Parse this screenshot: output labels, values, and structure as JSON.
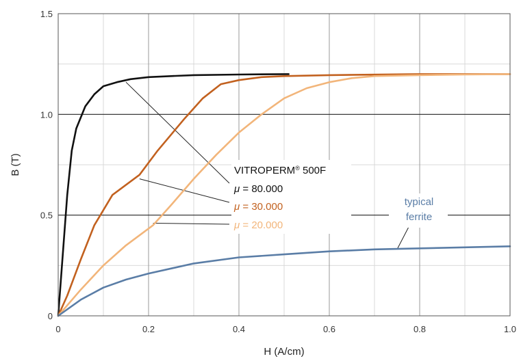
{
  "chart_data": {
    "type": "line",
    "title": "",
    "xlabel": "H (A/cm)",
    "ylabel": "B (T)",
    "xlim": [
      0,
      1.0
    ],
    "ylim": [
      0,
      1.5
    ],
    "x_ticks": [
      "0",
      "0.2",
      "0.4",
      "0.6",
      "0.8",
      "1.0"
    ],
    "y_ticks": [
      "0",
      "0.5",
      "1.0",
      "1.5"
    ],
    "grid": true,
    "series": [
      {
        "name": "μ = 80.000",
        "color": "#111111",
        "points": [
          [
            0,
            0
          ],
          [
            0.01,
            0.3
          ],
          [
            0.02,
            0.6
          ],
          [
            0.03,
            0.82
          ],
          [
            0.04,
            0.93
          ],
          [
            0.06,
            1.04
          ],
          [
            0.08,
            1.1
          ],
          [
            0.1,
            1.14
          ],
          [
            0.13,
            1.16
          ],
          [
            0.16,
            1.175
          ],
          [
            0.2,
            1.185
          ],
          [
            0.25,
            1.19
          ],
          [
            0.3,
            1.195
          ],
          [
            0.4,
            1.198
          ],
          [
            0.51,
            1.2
          ]
        ]
      },
      {
        "name": "μ = 30.000",
        "color": "#c2611f",
        "points": [
          [
            0,
            0
          ],
          [
            0.02,
            0.1
          ],
          [
            0.05,
            0.28
          ],
          [
            0.08,
            0.45
          ],
          [
            0.12,
            0.6
          ],
          [
            0.18,
            0.7
          ],
          [
            0.22,
            0.82
          ],
          [
            0.28,
            0.98
          ],
          [
            0.32,
            1.08
          ],
          [
            0.36,
            1.15
          ],
          [
            0.4,
            1.17
          ],
          [
            0.45,
            1.185
          ],
          [
            0.5,
            1.19
          ],
          [
            0.6,
            1.195
          ],
          [
            0.8,
            1.2
          ],
          [
            1.0,
            1.2
          ]
        ]
      },
      {
        "name": "μ = 20.000",
        "color": "#f2b57a",
        "points": [
          [
            0,
            0
          ],
          [
            0.05,
            0.13
          ],
          [
            0.1,
            0.25
          ],
          [
            0.15,
            0.35
          ],
          [
            0.21,
            0.45
          ],
          [
            0.25,
            0.55
          ],
          [
            0.3,
            0.68
          ],
          [
            0.35,
            0.8
          ],
          [
            0.4,
            0.91
          ],
          [
            0.45,
            1.0
          ],
          [
            0.5,
            1.08
          ],
          [
            0.55,
            1.13
          ],
          [
            0.6,
            1.16
          ],
          [
            0.65,
            1.18
          ],
          [
            0.7,
            1.19
          ],
          [
            0.8,
            1.195
          ],
          [
            0.9,
            1.198
          ],
          [
            1.0,
            1.2
          ]
        ]
      },
      {
        "name": "typical ferrite",
        "color": "#5a7da6",
        "points": [
          [
            0,
            0
          ],
          [
            0.05,
            0.08
          ],
          [
            0.1,
            0.14
          ],
          [
            0.15,
            0.18
          ],
          [
            0.2,
            0.21
          ],
          [
            0.3,
            0.26
          ],
          [
            0.4,
            0.29
          ],
          [
            0.5,
            0.305
          ],
          [
            0.6,
            0.32
          ],
          [
            0.7,
            0.33
          ],
          [
            0.8,
            0.335
          ],
          [
            0.9,
            0.34
          ],
          [
            1.0,
            0.345
          ]
        ]
      }
    ],
    "annotations": {
      "material_name": "VITROPERM",
      "material_reg": "®",
      "material_grade": " 500F",
      "mu_symbol": "μ",
      "mu80_value": " = 80.000",
      "mu30_value": " = 30.000",
      "mu20_value": " = 20.000",
      "ferrite_line1": "typical",
      "ferrite_line2": "ferrite"
    }
  }
}
